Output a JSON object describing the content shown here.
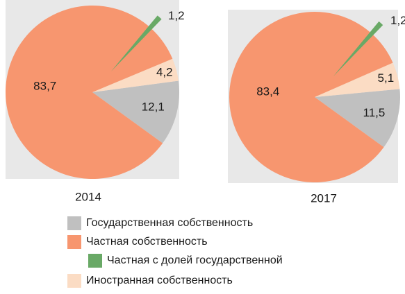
{
  "chart_data": [
    {
      "type": "pie",
      "title": "2014",
      "categories": [
        "Государственная собственность",
        "Частная собственность",
        "Частная с долей государственной",
        "Иностранная собственность"
      ],
      "values": [
        12.1,
        83.7,
        1.2,
        4.2
      ],
      "value_labels": [
        "12,1",
        "83,7",
        "1,2",
        "4,2"
      ],
      "colors": [
        "#c0c0c0",
        "#f7966f",
        "#69a966",
        "#fbdcc4"
      ]
    },
    {
      "type": "pie",
      "title": "2017",
      "categories": [
        "Государственная собственность",
        "Частная собственность",
        "Частная с долей государственной",
        "Иностранная собственность"
      ],
      "values": [
        11.5,
        83.4,
        1.2,
        5.1
      ],
      "value_labels": [
        "11,5",
        "83,4",
        "1,2",
        "5,1"
      ],
      "colors": [
        "#c0c0c0",
        "#f7966f",
        "#69a966",
        "#fbdcc4"
      ]
    }
  ]
}
